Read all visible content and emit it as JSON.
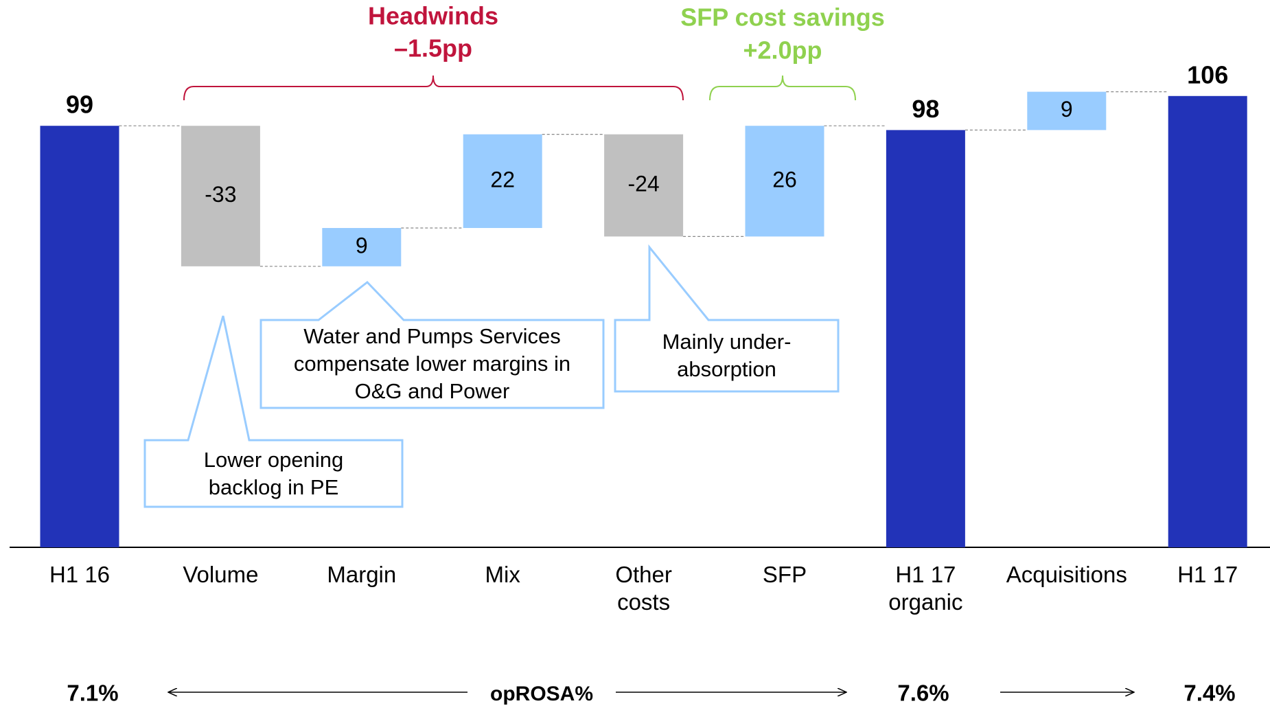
{
  "chart_data": {
    "type": "waterfall",
    "categories": [
      "H1 16",
      "Volume",
      "Margin",
      "Mix",
      "Other\ncosts",
      "SFP",
      "H1 17\norganic",
      "Acquisitions",
      "H1 17"
    ],
    "values": [
      99,
      -33,
      9,
      22,
      -24,
      26,
      98,
      9,
      106
    ],
    "measure": [
      "total",
      "relative",
      "relative",
      "relative",
      "relative",
      "relative",
      "total",
      "relative",
      "total"
    ],
    "colors": {
      "total": "#2233b8",
      "increase": "#99ccff",
      "decrease": "#c0c0c0"
    },
    "brackets": [
      {
        "title": "Headwinds",
        "subtitle": "–1.5pp",
        "color": "#c0143c"
      },
      {
        "title": "SFP cost  savings",
        "subtitle": "+2.0pp",
        "color": "#8fd14f"
      }
    ],
    "callouts": [
      {
        "text": "Lower opening\nbacklog in PE"
      },
      {
        "text": "Water and Pumps Services\ncompensate lower margins in\nO&G and Power"
      },
      {
        "text": "Mainly under-\nabsorption"
      }
    ],
    "footer": {
      "label": "opROSA%",
      "values": [
        "7.1%",
        "7.6%",
        "7.4%"
      ]
    }
  }
}
